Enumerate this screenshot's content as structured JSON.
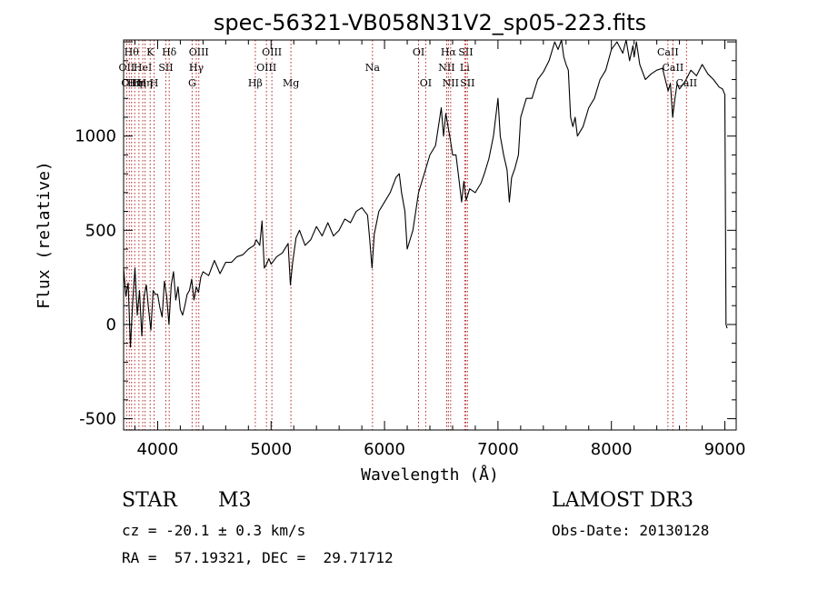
{
  "chart_data": {
    "type": "line",
    "title": "spec-56321-VB058N31V2_sp05-223.fits",
    "xlabel": "Wavelength (Å)",
    "ylabel": "Flux (relative)",
    "xlim": [
      3700,
      9100
    ],
    "ylim": [
      -560,
      1510
    ],
    "xticks": [
      4000,
      5000,
      6000,
      7000,
      8000,
      9000
    ],
    "yticks": [
      -500,
      0,
      500,
      1000
    ],
    "series": [
      {
        "name": "flux",
        "x": [
          3700,
          3720,
          3740,
          3760,
          3780,
          3800,
          3820,
          3840,
          3860,
          3880,
          3900,
          3920,
          3940,
          3960,
          3980,
          4000,
          4020,
          4040,
          4060,
          4080,
          4100,
          4120,
          4140,
          4160,
          4180,
          4200,
          4220,
          4240,
          4260,
          4280,
          4300,
          4320,
          4340,
          4360,
          4380,
          4400,
          4450,
          4500,
          4550,
          4600,
          4650,
          4700,
          4750,
          4800,
          4850,
          4870,
          4900,
          4920,
          4940,
          4960,
          4980,
          5000,
          5050,
          5100,
          5150,
          5170,
          5190,
          5220,
          5250,
          5300,
          5350,
          5400,
          5450,
          5500,
          5550,
          5600,
          5650,
          5700,
          5750,
          5800,
          5850,
          5870,
          5890,
          5910,
          5950,
          6000,
          6050,
          6100,
          6130,
          6150,
          6180,
          6200,
          6250,
          6300,
          6350,
          6400,
          6450,
          6500,
          6520,
          6540,
          6560,
          6580,
          6600,
          6630,
          6650,
          6680,
          6700,
          6720,
          6750,
          6800,
          6850,
          6880,
          6920,
          6960,
          7000,
          7020,
          7050,
          7080,
          7100,
          7120,
          7150,
          7180,
          7200,
          7250,
          7300,
          7350,
          7400,
          7450,
          7500,
          7530,
          7560,
          7580,
          7600,
          7620,
          7640,
          7660,
          7680,
          7700,
          7750,
          7800,
          7850,
          7900,
          7950,
          8000,
          8050,
          8100,
          8130,
          8160,
          8190,
          8200,
          8220,
          8250,
          8300,
          8350,
          8400,
          8450,
          8500,
          8520,
          8540,
          8560,
          8580,
          8600,
          8650,
          8700,
          8750,
          8800,
          8850,
          8900,
          8950,
          8980,
          9000,
          9010,
          9020
        ],
        "y": [
          300,
          150,
          220,
          -120,
          120,
          300,
          50,
          180,
          -60,
          150,
          210,
          80,
          -30,
          180,
          160,
          160,
          90,
          40,
          230,
          150,
          0,
          210,
          280,
          130,
          200,
          80,
          50,
          100,
          160,
          180,
          240,
          130,
          200,
          170,
          250,
          280,
          260,
          340,
          270,
          330,
          330,
          360,
          370,
          400,
          420,
          450,
          420,
          550,
          300,
          320,
          350,
          320,
          360,
          380,
          430,
          210,
          330,
          460,
          500,
          420,
          450,
          520,
          470,
          540,
          470,
          500,
          560,
          540,
          600,
          620,
          580,
          450,
          300,
          480,
          600,
          650,
          700,
          780,
          800,
          700,
          600,
          400,
          500,
          700,
          800,
          900,
          950,
          1150,
          1000,
          1120,
          1050,
          980,
          900,
          900,
          800,
          650,
          760,
          660,
          720,
          700,
          750,
          800,
          880,
          1000,
          1200,
          1000,
          900,
          820,
          650,
          780,
          830,
          900,
          1100,
          1200,
          1200,
          1300,
          1340,
          1400,
          1500,
          1460,
          1510,
          1420,
          1380,
          1350,
          1100,
          1050,
          1100,
          1000,
          1050,
          1150,
          1200,
          1300,
          1350,
          1460,
          1500,
          1440,
          1510,
          1400,
          1480,
          1420,
          1500,
          1380,
          1300,
          1330,
          1350,
          1360,
          1240,
          1280,
          1100,
          1200,
          1280,
          1250,
          1290,
          1350,
          1320,
          1380,
          1330,
          1300,
          1260,
          1250,
          1220,
          0,
          -20
        ]
      }
    ],
    "lines": [
      {
        "x": 3727,
        "label": "OII",
        "row": 1
      },
      {
        "x": 3750,
        "label": "OII",
        "row": 2
      },
      {
        "x": 3770,
        "label": "Hθ",
        "row": 0
      },
      {
        "x": 3798,
        "label": "Hη",
        "row": 2
      },
      {
        "x": 3835,
        "label": "Hη",
        "row": 2
      },
      {
        "x": 3869,
        "label": "HeI",
        "row": 1
      },
      {
        "x": 3889,
        "label": "Hη",
        "row": 2
      },
      {
        "x": 3934,
        "label": "K",
        "row": 0
      },
      {
        "x": 3969,
        "label": "H",
        "row": 2
      },
      {
        "x": 4072,
        "label": "SII",
        "row": 1
      },
      {
        "x": 4102,
        "label": "Hδ",
        "row": 0
      },
      {
        "x": 4304,
        "label": "G",
        "row": 2
      },
      {
        "x": 4341,
        "label": "Hγ",
        "row": 1
      },
      {
        "x": 4363,
        "label": "OIII",
        "row": 0
      },
      {
        "x": 4861,
        "label": "Hβ",
        "row": 2
      },
      {
        "x": 4959,
        "label": "OIII",
        "row": 1
      },
      {
        "x": 5007,
        "label": "OIII",
        "row": 0
      },
      {
        "x": 5175,
        "label": "Mg",
        "row": 2
      },
      {
        "x": 5894,
        "label": "Na",
        "row": 1
      },
      {
        "x": 6300,
        "label": "OI",
        "row": 0
      },
      {
        "x": 6363,
        "label": "OI",
        "row": 2
      },
      {
        "x": 6548,
        "label": "NII",
        "row": 1
      },
      {
        "x": 6563,
        "label": "Hα",
        "row": 0
      },
      {
        "x": 6583,
        "label": "NII",
        "row": 2
      },
      {
        "x": 6707,
        "label": "Li",
        "row": 1
      },
      {
        "x": 6716,
        "label": "SII",
        "row": 0
      },
      {
        "x": 6731,
        "label": "SII",
        "row": 2
      },
      {
        "x": 8498,
        "label": "CaII",
        "row": 0
      },
      {
        "x": 8542,
        "label": "CaII",
        "row": 1
      },
      {
        "x": 8662,
        "label": "CaII",
        "row": 2
      }
    ]
  },
  "info": {
    "class": "STAR",
    "subclass": "M3",
    "survey": "LAMOST DR3",
    "cz": "cz = -20.1 ± 0.3 km/s",
    "obs_date": "Obs-Date: 20130128",
    "coords": "RA =  57.19321, DEC =  29.71712"
  }
}
